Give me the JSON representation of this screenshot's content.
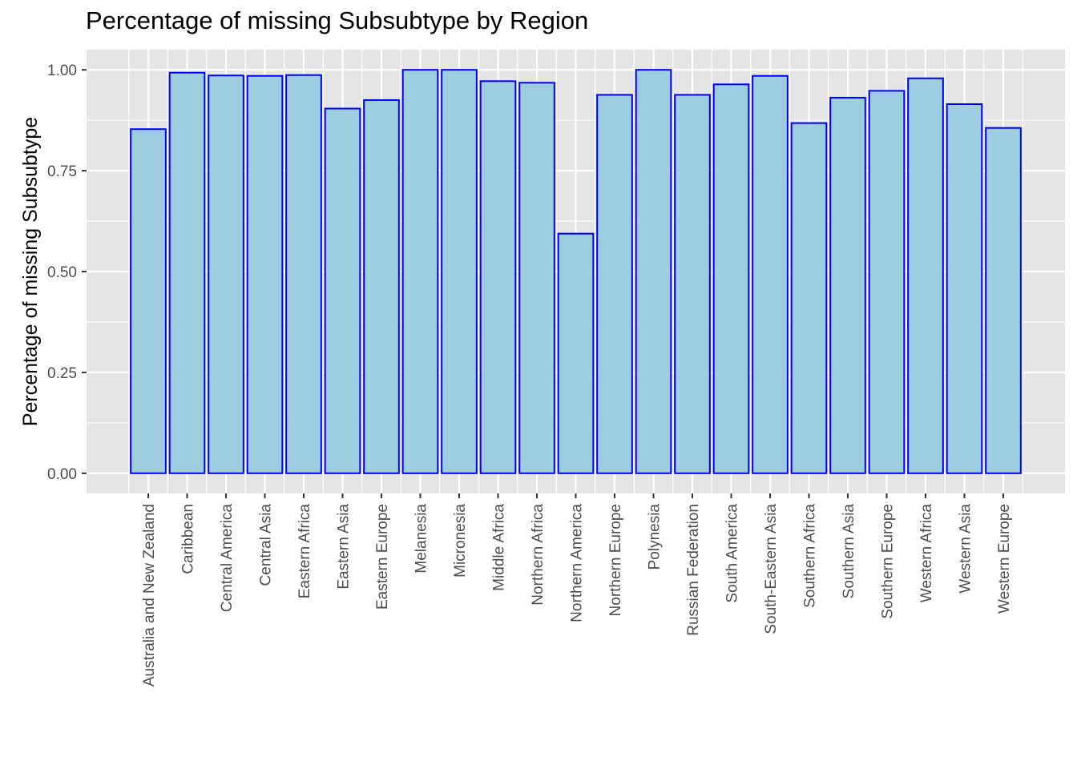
{
  "chart_data": {
    "type": "bar",
    "title": "Percentage of missing Subsubtype by Region",
    "xlabel": "",
    "ylabel": "Percentage of missing Subsubtype",
    "ylim": [
      -0.05,
      1.05
    ],
    "yticks": [
      "0.00",
      "0.25",
      "0.50",
      "0.75",
      "1.00"
    ],
    "grid": true,
    "colors": {
      "panel": "#e5e5e5",
      "grid": "#ffffff",
      "bar_fill": "#9ecde0",
      "bar_stroke": "#0000ff"
    },
    "categories": [
      "Australia and New Zealand",
      "Caribbean",
      "Central America",
      "Central Asia",
      "Eastern Africa",
      "Eastern Asia",
      "Eastern Europe",
      "Melanesia",
      "Micronesia",
      "Middle Africa",
      "Northern Africa",
      "Northern America",
      "Northern Europe",
      "Polynesia",
      "Russian Federation",
      "South America",
      "South-Eastern Asia",
      "Southern Africa",
      "Southern Asia",
      "Southern Europe",
      "Western Africa",
      "Western Asia",
      "Western Europe"
    ],
    "values": [
      0.853,
      0.993,
      0.986,
      0.985,
      0.987,
      0.904,
      0.925,
      1.0,
      1.0,
      0.972,
      0.968,
      0.594,
      0.938,
      1.0,
      0.938,
      0.964,
      0.985,
      0.868,
      0.931,
      0.948,
      0.979,
      0.915,
      0.856
    ]
  }
}
